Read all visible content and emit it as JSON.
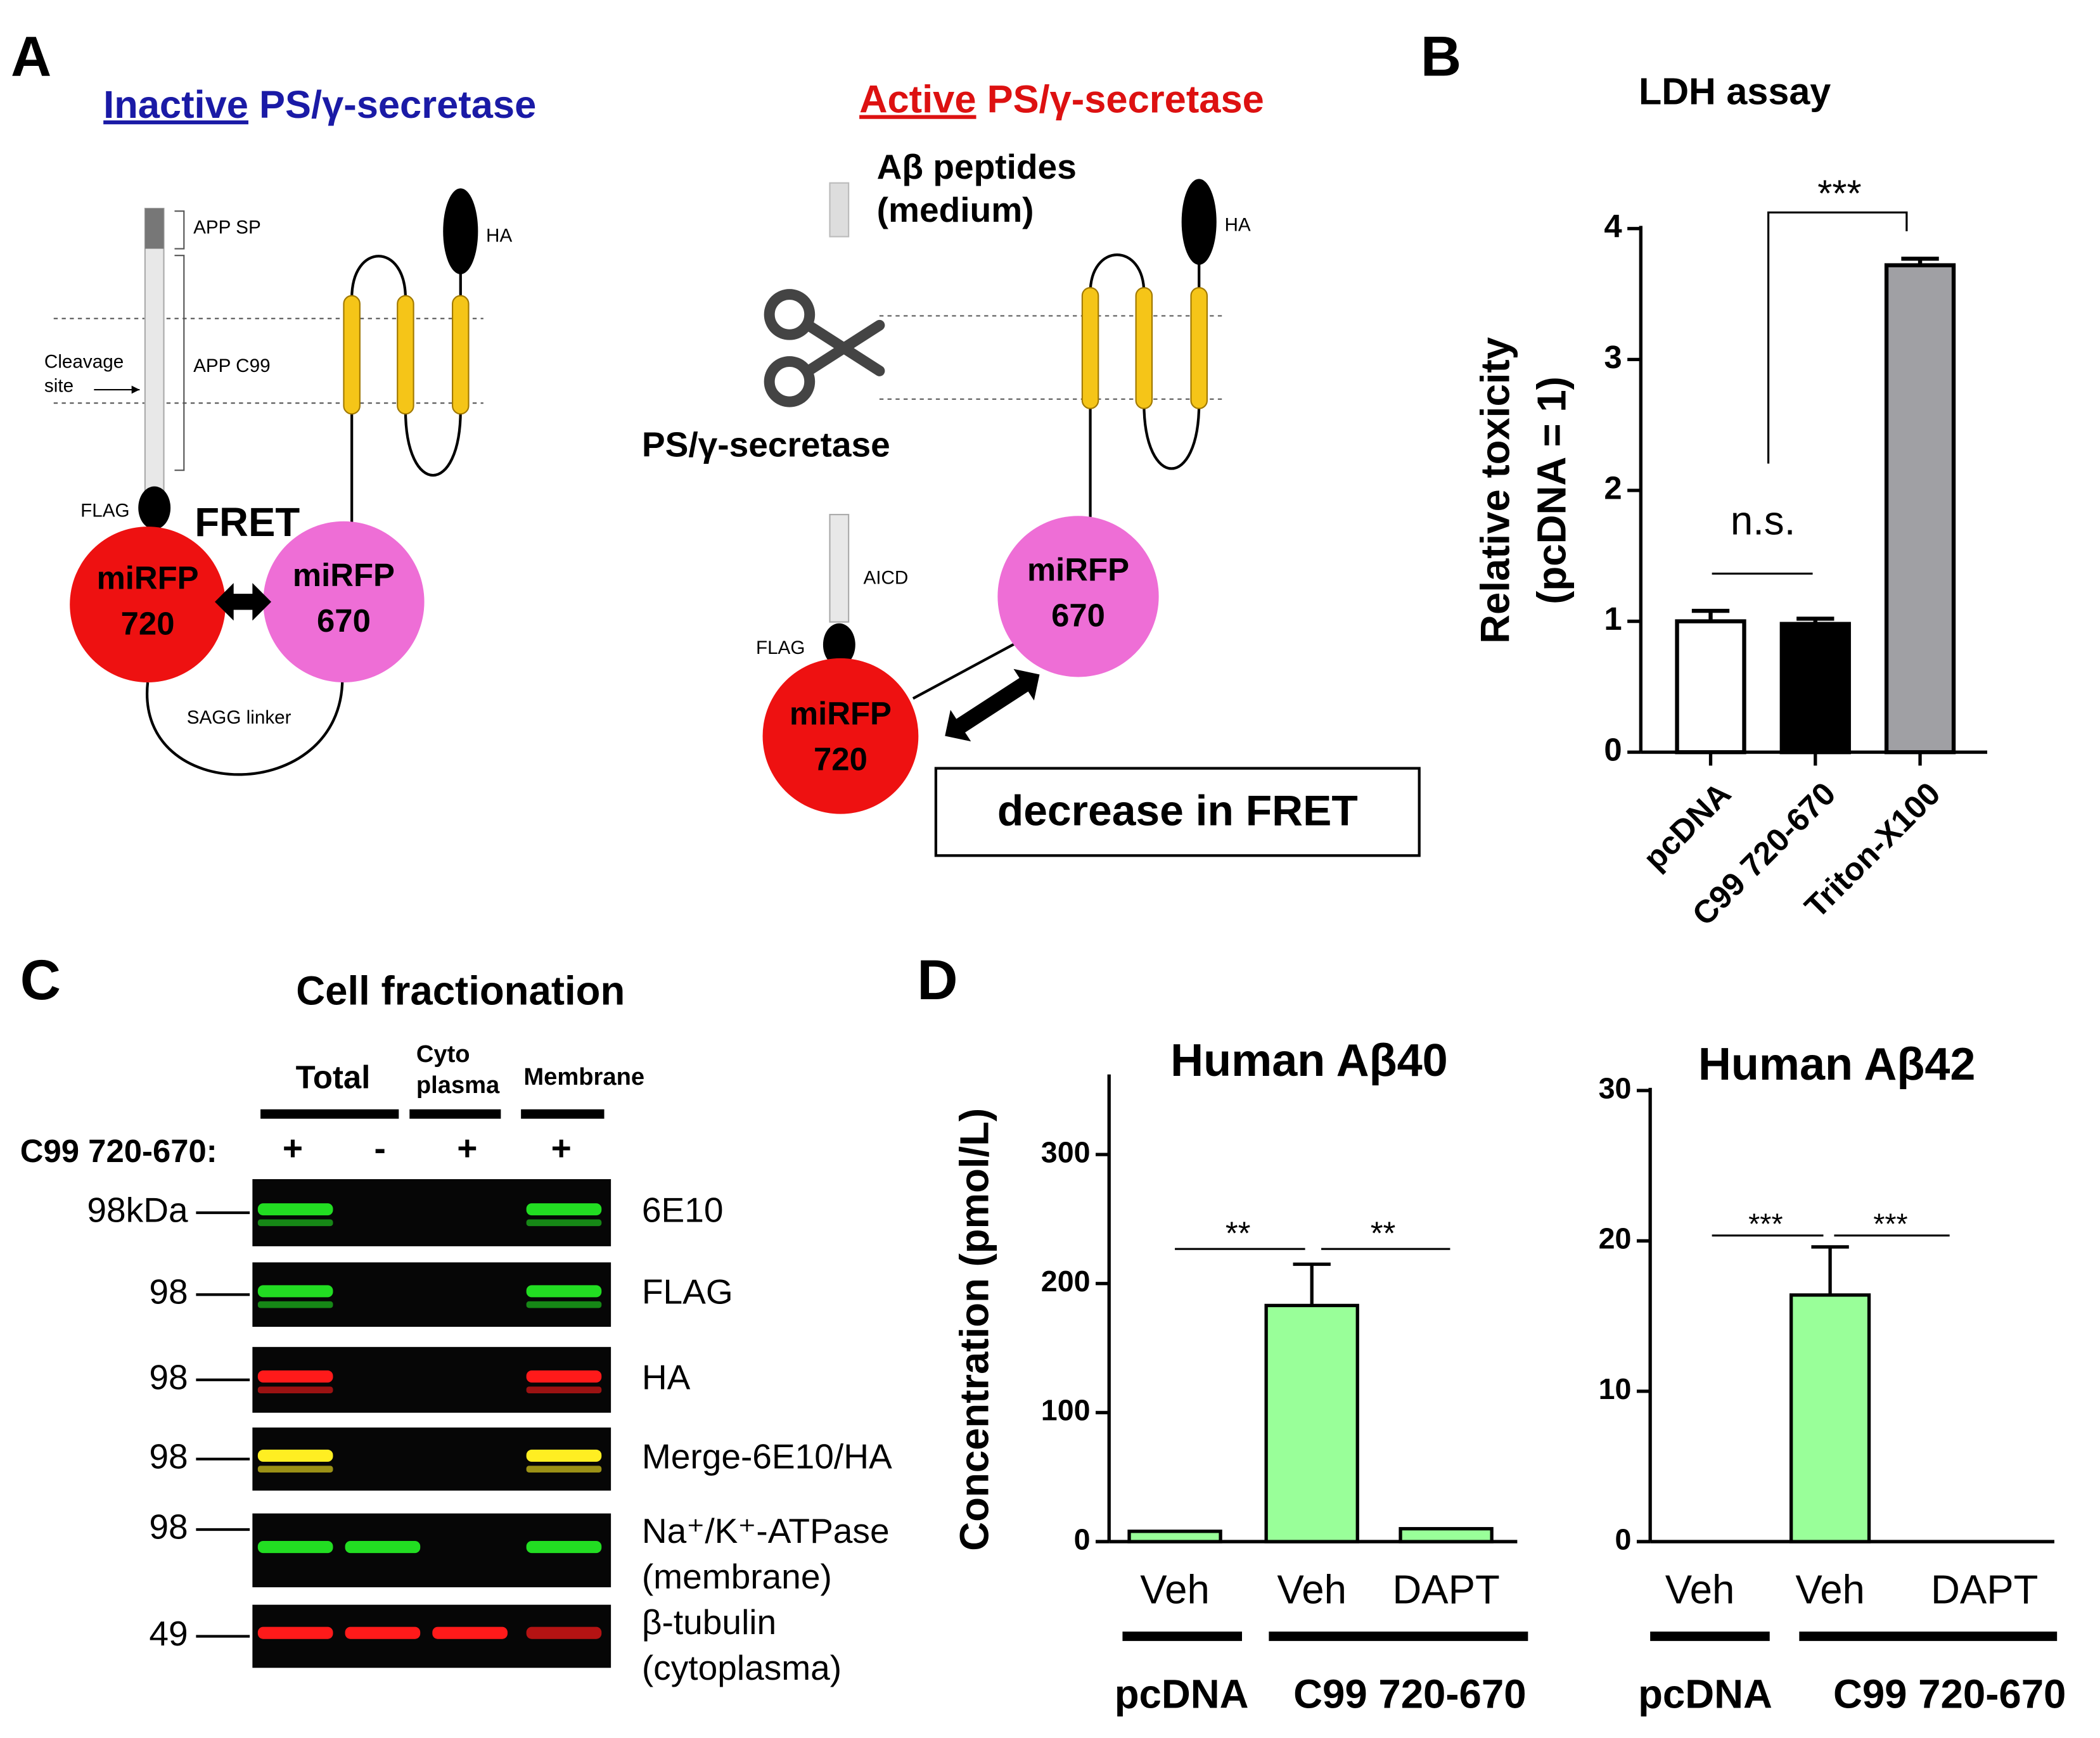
{
  "panel_labels": [
    "A",
    "B",
    "C",
    "D"
  ],
  "panel_a": {
    "inactive": {
      "title": {
        "emph": "Inactive",
        "rest": "PS/γ-secretase"
      },
      "app_sp": "APP SP",
      "app_c99": "APP C99",
      "cleavage": [
        "Cleavage",
        "site"
      ],
      "ha": "HA",
      "flag": "FLAG",
      "fret": "FRET",
      "donor": [
        "miRFP",
        "720"
      ],
      "acceptor": [
        "miRFP",
        "670"
      ],
      "linker": "SAGG linker"
    },
    "active": {
      "title": {
        "emph": "Active",
        "rest": "PS/γ-secretase"
      },
      "abeta": [
        "Aβ peptides",
        "(medium)"
      ],
      "enzyme": "PS/γ-secretase",
      "aicd": "AICD",
      "ha": "HA",
      "flag": "FLAG",
      "donor": [
        "miRFP",
        "720"
      ],
      "acceptor": [
        "miRFP",
        "670"
      ],
      "result": "decrease in FRET"
    }
  },
  "panel_c": {
    "title": "Cell fractionation",
    "groups": [
      "Total",
      [
        "Cyto",
        "plasma"
      ],
      "Membrane"
    ],
    "row_label": "C99 720-670:",
    "signs": [
      "+",
      "-",
      "+",
      "+"
    ],
    "blots": [
      {
        "kda": "98kDa",
        "name": [
          "6E10"
        ]
      },
      {
        "kda": "98",
        "name": [
          "FLAG"
        ]
      },
      {
        "kda": "98",
        "name": [
          "HA"
        ]
      },
      {
        "kda": "98",
        "name": [
          "Merge-6E10/HA"
        ]
      },
      {
        "kda": "98",
        "name": [
          "Na⁺/K⁺-ATPase",
          "(membrane)"
        ]
      },
      {
        "kda": "49",
        "name": [
          "β-tubulin",
          "(cytoplasma)"
        ]
      }
    ]
  },
  "chart_data": [
    {
      "type": "bar",
      "title": "LDH assay",
      "ylabel": [
        "Relative toxicity",
        "(pcDNA = 1)"
      ],
      "categories": [
        "pcDNA",
        "C99 720-670",
        "Triton-X100"
      ],
      "values": [
        1.0,
        0.98,
        3.72
      ],
      "errors": [
        0.08,
        0.04,
        0.05
      ],
      "colors": [
        "#ffffff",
        "#000000",
        "#a0a0a4"
      ],
      "ylim": [
        0,
        4
      ],
      "yticks": [
        0,
        1,
        2,
        3,
        4
      ],
      "annotations": [
        "n.s.",
        "***"
      ]
    },
    {
      "type": "bar",
      "title": "Human Aβ40",
      "ylabel": [
        "Concentration (pmol/L)"
      ],
      "categories": [
        "Veh",
        "Veh",
        "DAPT"
      ],
      "groups": [
        "pcDNA",
        "C99 720-670"
      ],
      "values": [
        8,
        183,
        10
      ],
      "errors": [
        0,
        32,
        0
      ],
      "color": "#99ff99",
      "ylim": [
        0,
        360
      ],
      "yticks": [
        0,
        100,
        200,
        300
      ],
      "annotations": [
        "**",
        "**"
      ]
    },
    {
      "type": "bar",
      "title": "Human Aβ42",
      "categories": [
        "Veh",
        "Veh",
        "DAPT"
      ],
      "groups": [
        "pcDNA",
        "C99 720-670"
      ],
      "values": [
        0,
        16.4,
        0
      ],
      "errors": [
        0,
        3.2,
        0
      ],
      "color": "#99ff99",
      "ylim": [
        0,
        30
      ],
      "yticks": [
        0,
        10,
        20,
        30
      ],
      "annotations": [
        "***",
        "***"
      ]
    }
  ]
}
